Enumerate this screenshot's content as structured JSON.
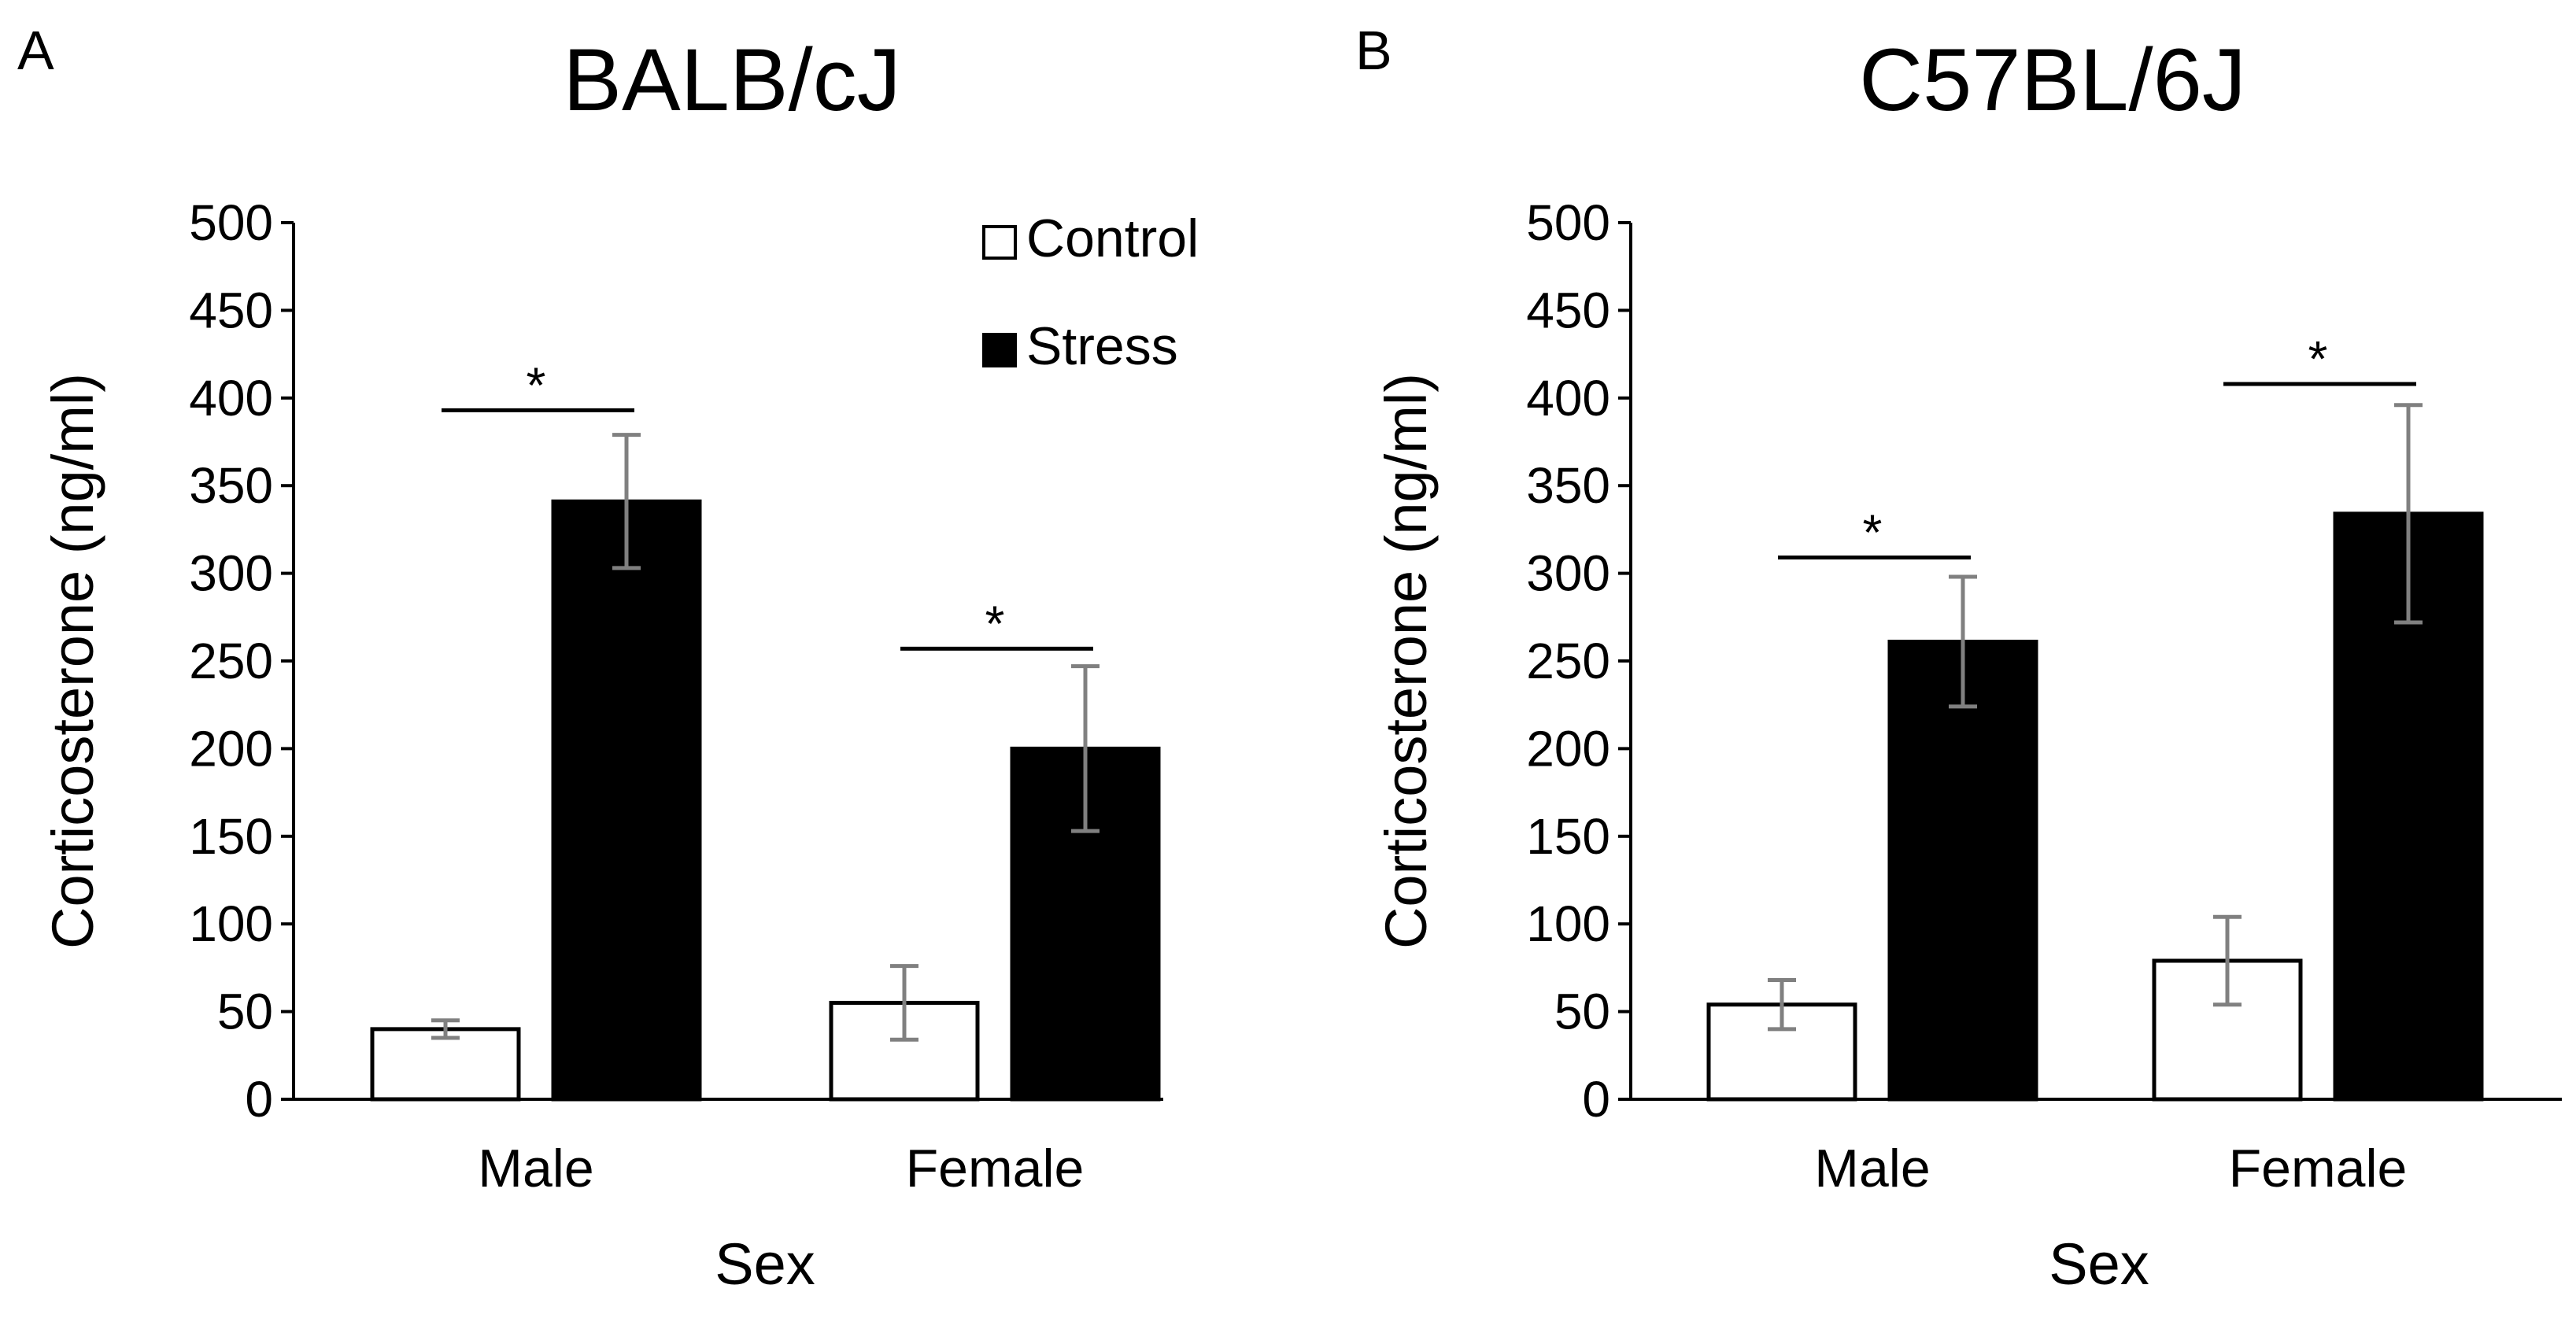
{
  "chart_data": [
    {
      "panel_label": "A",
      "type": "bar",
      "title": "BALB/cJ",
      "xlabel": "Sex",
      "ylabel": "Corticosterone (ng/ml)",
      "ylim": [
        0,
        500
      ],
      "yticks": [
        0,
        50,
        100,
        150,
        200,
        250,
        300,
        350,
        400,
        450,
        500
      ],
      "categories": [
        "Male",
        "Female"
      ],
      "series": [
        {
          "name": "Control",
          "color": "#ffffff",
          "values": [
            40,
            55
          ],
          "errors": [
            5,
            21
          ]
        },
        {
          "name": "Stress",
          "color": "#000000",
          "values": [
            341,
            200
          ],
          "errors": [
            38,
            47
          ]
        }
      ],
      "significance": [
        {
          "category": "Male",
          "label": "*",
          "y": 393
        },
        {
          "category": "Female",
          "label": "*",
          "y": 257
        }
      ],
      "legend": {
        "position": "top-right",
        "visible": true
      },
      "grid": false
    },
    {
      "panel_label": "B",
      "type": "bar",
      "title": "C57BL/6J",
      "xlabel": "Sex",
      "ylabel": "Corticosterone (ng/ml)",
      "ylim": [
        0,
        500
      ],
      "yticks": [
        0,
        50,
        100,
        150,
        200,
        250,
        300,
        350,
        400,
        450,
        500
      ],
      "categories": [
        "Male",
        "Female"
      ],
      "series": [
        {
          "name": "Control",
          "color": "#ffffff",
          "values": [
            54,
            79
          ],
          "errors": [
            14,
            25
          ]
        },
        {
          "name": "Stress",
          "color": "#000000",
          "values": [
            261,
            334
          ],
          "errors": [
            37,
            62
          ]
        }
      ],
      "significance": [
        {
          "category": "Male",
          "label": "*",
          "y": 309
        },
        {
          "category": "Female",
          "label": "*",
          "y": 408
        }
      ],
      "legend": {
        "visible": false
      },
      "grid": false
    }
  ],
  "colors": {
    "axis": "#000000",
    "error_bar": "#808080",
    "control_fill": "#ffffff",
    "stress_fill": "#000000"
  }
}
